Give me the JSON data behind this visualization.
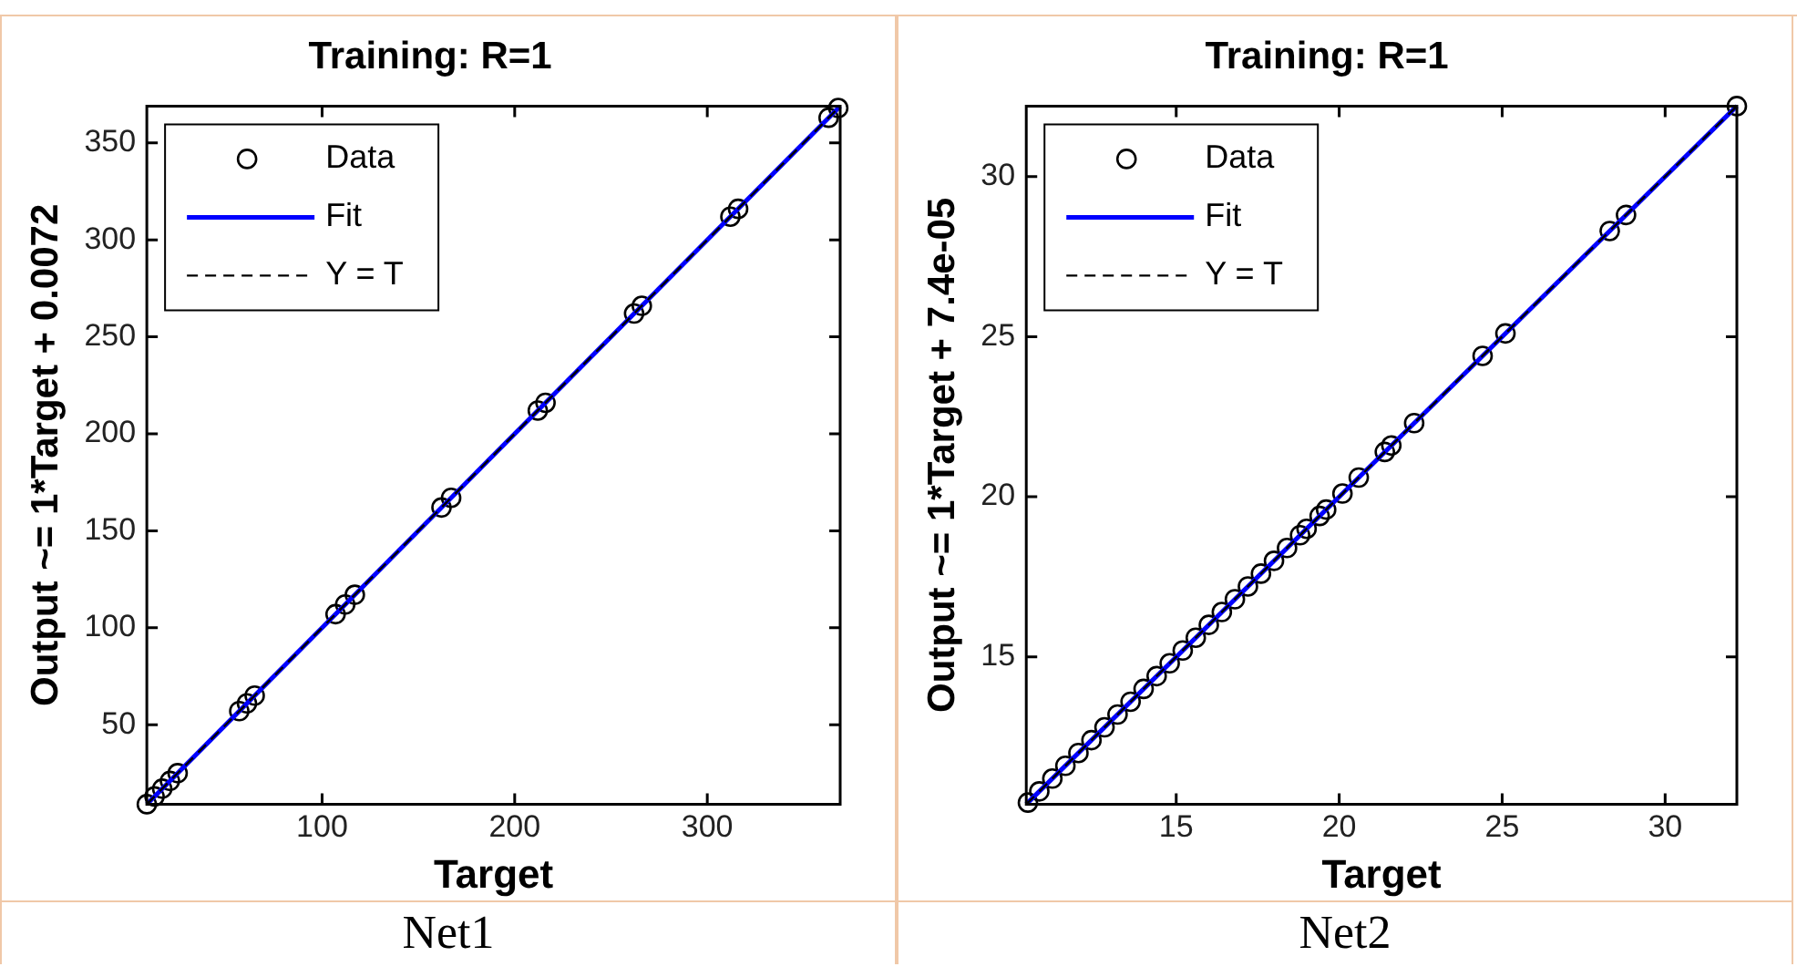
{
  "chart_data": [
    {
      "type": "scatter",
      "title": "Training: R=1",
      "xlabel": "Target",
      "ylabel": "Output ~= 1*Target + 0.0072",
      "xlim": [
        9,
        369
      ],
      "ylim": [
        9,
        369
      ],
      "xticks": [
        100,
        200,
        300
      ],
      "yticks": [
        50,
        100,
        150,
        200,
        250,
        300,
        350
      ],
      "legend": "top left",
      "grid": false,
      "annotations": [
        "Net1"
      ],
      "series": [
        {
          "name": "Data",
          "type": "scatter",
          "marker": "circle",
          "color": "#000000",
          "x": [
            9,
            13,
            17,
            21,
            25,
            57,
            61,
            65,
            107,
            112,
            117,
            162,
            167,
            212,
            216,
            262,
            266,
            312,
            316,
            363,
            368
          ],
          "values": [
            9,
            13,
            17,
            21,
            25,
            57,
            61,
            65,
            107,
            112,
            117,
            162,
            167,
            212,
            216,
            262,
            266,
            312,
            316,
            363,
            368
          ]
        },
        {
          "name": "Fit",
          "type": "line",
          "line_style": "solid",
          "marker": "none",
          "color": "#0000ff",
          "x": [
            9,
            369
          ],
          "values": [
            9,
            369
          ]
        },
        {
          "name": "Y = T",
          "type": "line",
          "line_style": "dashed",
          "marker": "none",
          "color": "#000000",
          "x": [
            9,
            369
          ],
          "values": [
            9,
            369
          ]
        }
      ]
    },
    {
      "type": "scatter",
      "title": "Training: R=1",
      "xlabel": "Target",
      "ylabel": "Output ~= 1*Target + 7.4e-05",
      "xlim": [
        10.4,
        32.2
      ],
      "ylim": [
        10.4,
        32.2
      ],
      "xticks": [
        15,
        20,
        25,
        30
      ],
      "yticks": [
        15,
        20,
        25,
        30
      ],
      "legend": "top left",
      "grid": false,
      "annotations": [
        "Net2"
      ],
      "series": [
        {
          "name": "Data",
          "type": "scatter",
          "marker": "circle",
          "color": "#000000",
          "x": [
            10.45,
            10.8,
            11.2,
            11.6,
            12,
            12.4,
            12.8,
            13.2,
            13.6,
            14,
            14.4,
            14.8,
            15.2,
            15.6,
            16,
            16.4,
            16.8,
            17.2,
            17.6,
            18,
            18.4,
            18.8,
            19,
            19.4,
            19.6,
            20.1,
            20.6,
            21.4,
            21.6,
            22.3,
            24.4,
            25.1,
            28.3,
            28.8,
            32.2
          ],
          "values": [
            10.45,
            10.8,
            11.2,
            11.6,
            12,
            12.4,
            12.8,
            13.2,
            13.6,
            14,
            14.4,
            14.8,
            15.2,
            15.6,
            16,
            16.4,
            16.8,
            17.2,
            17.6,
            18,
            18.4,
            18.8,
            19,
            19.4,
            19.6,
            20.1,
            20.6,
            21.4,
            21.6,
            22.3,
            24.4,
            25.1,
            28.3,
            28.8,
            32.2
          ]
        },
        {
          "name": "Fit",
          "type": "line",
          "line_style": "solid",
          "marker": "none",
          "color": "#0000ff",
          "x": [
            10.4,
            32.2
          ],
          "values": [
            10.4,
            32.2
          ]
        },
        {
          "name": "Y = T",
          "type": "line",
          "line_style": "dashed",
          "marker": "none",
          "color": "#000000",
          "x": [
            10.4,
            32.2
          ],
          "values": [
            10.4,
            32.2
          ]
        }
      ]
    }
  ]
}
